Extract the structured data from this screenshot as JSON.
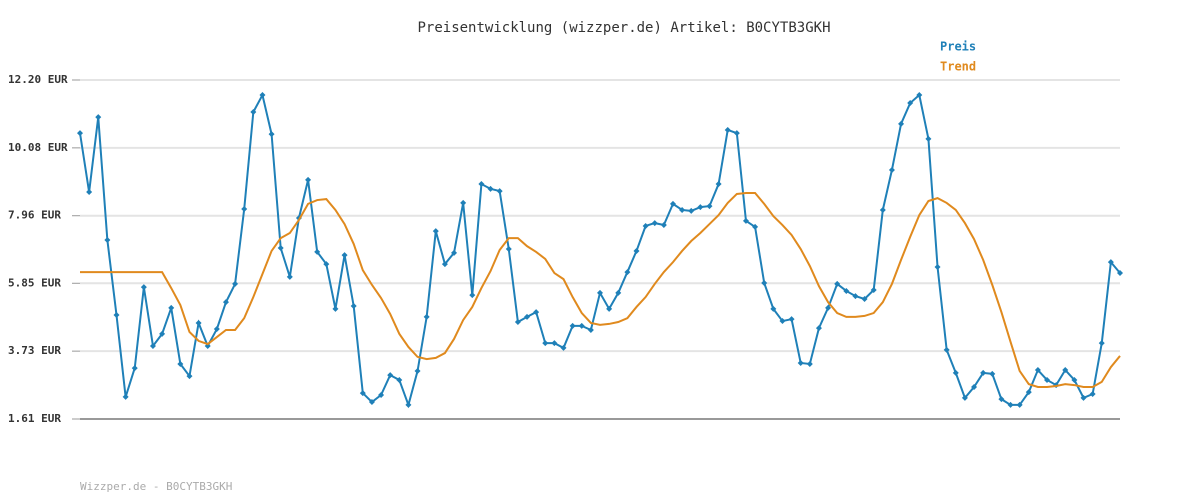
{
  "chart_data": {
    "type": "line",
    "title": "Preisentwicklung (wizzper.de) Artikel: B0CYTB3GKH",
    "footer": "Wizzper.de - B0CYTB3GKH",
    "legend": "top-right",
    "grid": true,
    "ylim": [
      1.61,
      12.2
    ],
    "yticks": [
      {
        "value": 1.61,
        "label": "1.61 EUR"
      },
      {
        "value": 3.73,
        "label": "3.73 EUR"
      },
      {
        "value": 5.85,
        "label": "5.85 EUR"
      },
      {
        "value": 7.96,
        "label": "7.96 EUR"
      },
      {
        "value": 10.08,
        "label": "10.08 EUR"
      },
      {
        "value": 12.2,
        "label": "12.20 EUR"
      }
    ],
    "series": [
      {
        "name": "Preis",
        "color": "#1f80b8",
        "markers": true,
        "values": [
          10.54,
          8.7,
          11.04,
          7.2,
          4.86,
          2.3,
          3.2,
          5.73,
          3.89,
          4.27,
          5.08,
          3.33,
          2.95,
          4.61,
          3.89,
          4.42,
          5.26,
          5.83,
          8.17,
          11.2,
          11.73,
          10.51,
          6.95,
          6.05,
          7.89,
          9.08,
          6.83,
          6.45,
          5.05,
          6.73,
          5.14,
          2.42,
          2.14,
          2.36,
          2.98,
          2.83,
          2.05,
          3.11,
          4.8,
          7.48,
          6.45,
          6.8,
          8.36,
          5.48,
          8.95,
          8.8,
          8.73,
          6.92,
          4.64,
          4.8,
          4.95,
          3.98,
          3.98,
          3.83,
          4.52,
          4.52,
          4.39,
          5.55,
          5.05,
          5.55,
          6.2,
          6.86,
          7.64,
          7.73,
          7.67,
          8.33,
          8.14,
          8.11,
          8.23,
          8.26,
          8.95,
          10.64,
          10.54,
          7.8,
          7.61,
          5.86,
          5.05,
          4.67,
          4.73,
          3.36,
          3.33,
          4.45,
          5.08,
          5.83,
          5.61,
          5.45,
          5.36,
          5.64,
          8.14,
          9.39,
          10.83,
          11.48,
          11.73,
          10.36,
          6.36,
          3.77,
          3.05,
          2.27,
          2.61,
          3.05,
          3.02,
          2.23,
          2.05,
          2.05,
          2.45,
          3.14,
          2.83,
          2.67,
          3.14,
          2.83,
          2.27,
          2.39,
          3.98,
          6.51,
          6.17
        ]
      },
      {
        "name": "Trend",
        "color": "#e08a1e",
        "markers": false,
        "values": [
          6.2,
          6.2,
          6.2,
          6.2,
          6.2,
          6.2,
          6.2,
          6.2,
          6.2,
          6.2,
          5.7,
          5.17,
          4.33,
          4.05,
          3.95,
          4.17,
          4.39,
          4.39,
          4.76,
          5.42,
          6.14,
          6.86,
          7.26,
          7.42,
          7.83,
          8.33,
          8.45,
          8.48,
          8.14,
          7.7,
          7.08,
          6.26,
          5.8,
          5.39,
          4.89,
          4.27,
          3.86,
          3.55,
          3.48,
          3.52,
          3.67,
          4.11,
          4.7,
          5.11,
          5.7,
          6.23,
          6.89,
          7.26,
          7.26,
          7.01,
          6.83,
          6.61,
          6.17,
          5.98,
          5.42,
          4.92,
          4.61,
          4.55,
          4.58,
          4.64,
          4.76,
          5.11,
          5.42,
          5.83,
          6.2,
          6.51,
          6.86,
          7.17,
          7.42,
          7.7,
          7.98,
          8.36,
          8.64,
          8.67,
          8.67,
          8.33,
          7.95,
          7.67,
          7.36,
          6.92,
          6.39,
          5.76,
          5.26,
          4.92,
          4.8,
          4.8,
          4.83,
          4.92,
          5.26,
          5.83,
          6.58,
          7.3,
          7.98,
          8.42,
          8.51,
          8.36,
          8.14,
          7.73,
          7.23,
          6.58,
          5.8,
          4.95,
          4.02,
          3.11,
          2.7,
          2.61,
          2.61,
          2.64,
          2.7,
          2.67,
          2.61,
          2.61,
          2.77,
          3.23,
          3.58
        ]
      }
    ]
  }
}
